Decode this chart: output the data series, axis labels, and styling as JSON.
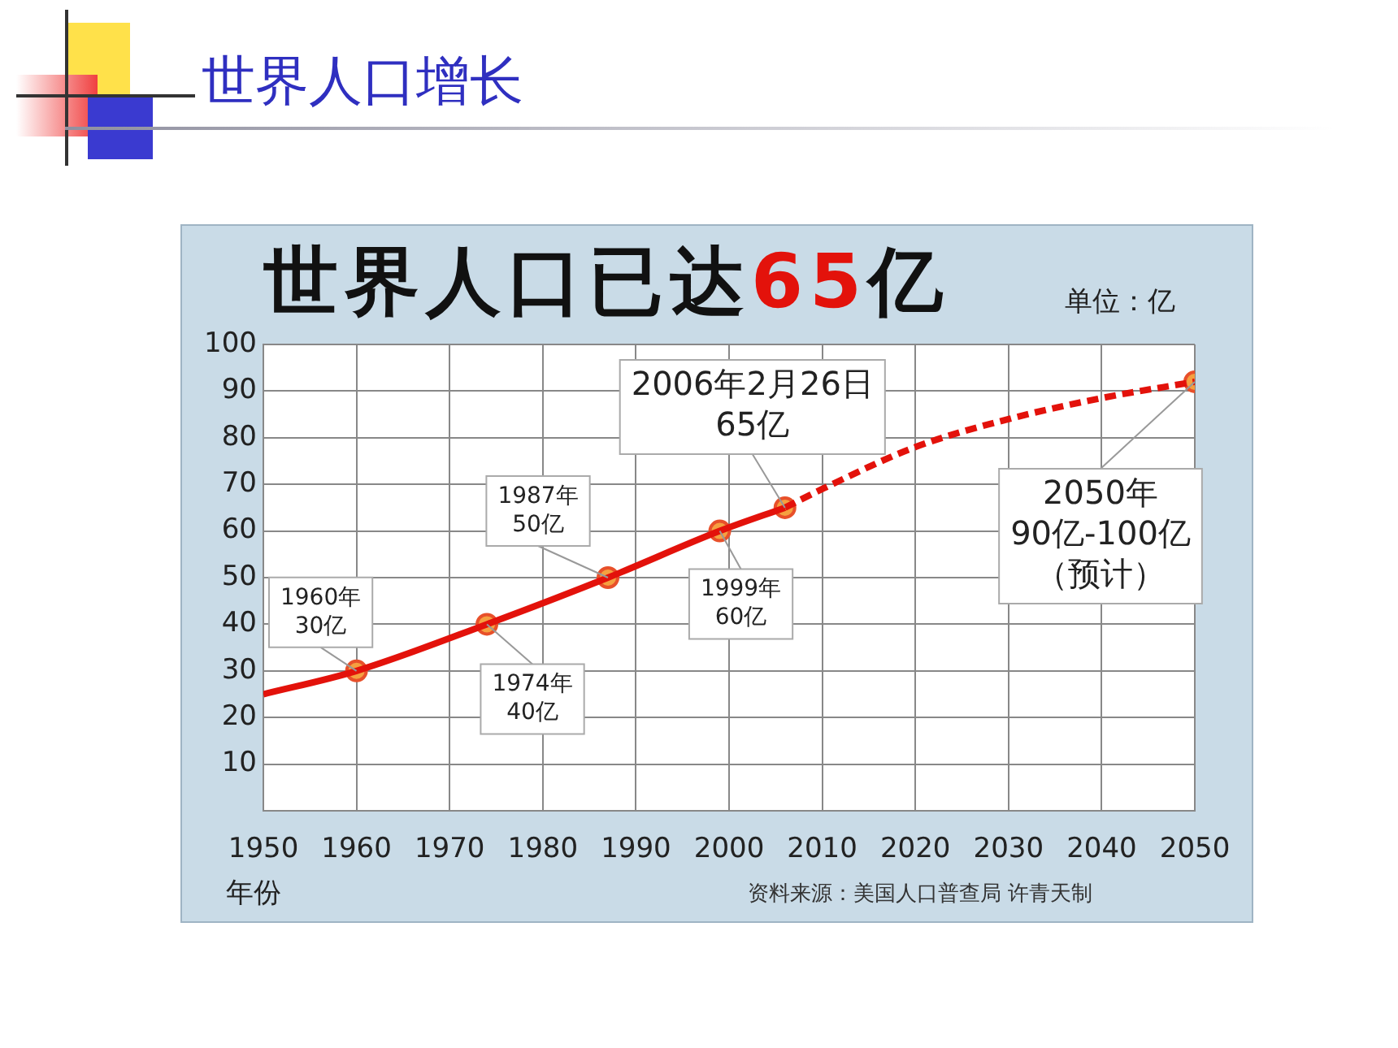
{
  "chart_data": {
    "type": "line",
    "title": "世界人口增长",
    "subtitle": "世界人口已达65亿",
    "xlabel": "年份",
    "ylabel": "单位：亿",
    "xlim": [
      1950,
      2050
    ],
    "xticks": [
      1950,
      1960,
      1970,
      1980,
      1990,
      2000,
      2010,
      2020,
      2030,
      2040,
      2050
    ],
    "ylim": [
      0,
      100
    ],
    "yticks": [
      {
        "value": 0,
        "label": null
      },
      10,
      20,
      30,
      40,
      50,
      60,
      70,
      80,
      90,
      100
    ],
    "grid": true,
    "series": [
      {
        "type": "line",
        "color": "#e3120b",
        "line_style": "solid",
        "marker": "none",
        "x": [
          1950,
          1960,
          1974,
          1987,
          1999,
          2006
        ],
        "values": [
          25,
          30,
          40,
          50,
          60,
          65
        ]
      },
      {
        "type": "line",
        "color": "#e3120b",
        "line_style": "dashed",
        "marker": "none",
        "x": [
          2006,
          2010,
          2020,
          2030,
          2040,
          2050
        ],
        "values": [
          65,
          69,
          78,
          84,
          88.5,
          92
        ]
      },
      {
        "type": "scatter",
        "color": "#f5a040",
        "marker": "circle",
        "x": [
          1960,
          1974,
          1987,
          1999,
          2006,
          2050
        ],
        "values": [
          30,
          40,
          50,
          60,
          65,
          92
        ]
      }
    ],
    "annotations": [
      {
        "text": "1960年\n30亿",
        "x": 1960,
        "y": 30
      },
      {
        "text": "1974年\n40亿",
        "x": 1974,
        "y": 40
      },
      {
        "text": "1987年\n50亿",
        "x": 1987,
        "y": 50
      },
      {
        "text": "1999年\n60亿",
        "x": 1999,
        "y": 60
      },
      {
        "text": "2006年2月26日\n65亿",
        "x": 2006,
        "y": 65
      },
      {
        "text": "2050年\n90亿-100亿（预计）",
        "x": 2050,
        "y": 92
      },
      "资料来源：美国人口普查局 许青天制"
    ]
  }
}
